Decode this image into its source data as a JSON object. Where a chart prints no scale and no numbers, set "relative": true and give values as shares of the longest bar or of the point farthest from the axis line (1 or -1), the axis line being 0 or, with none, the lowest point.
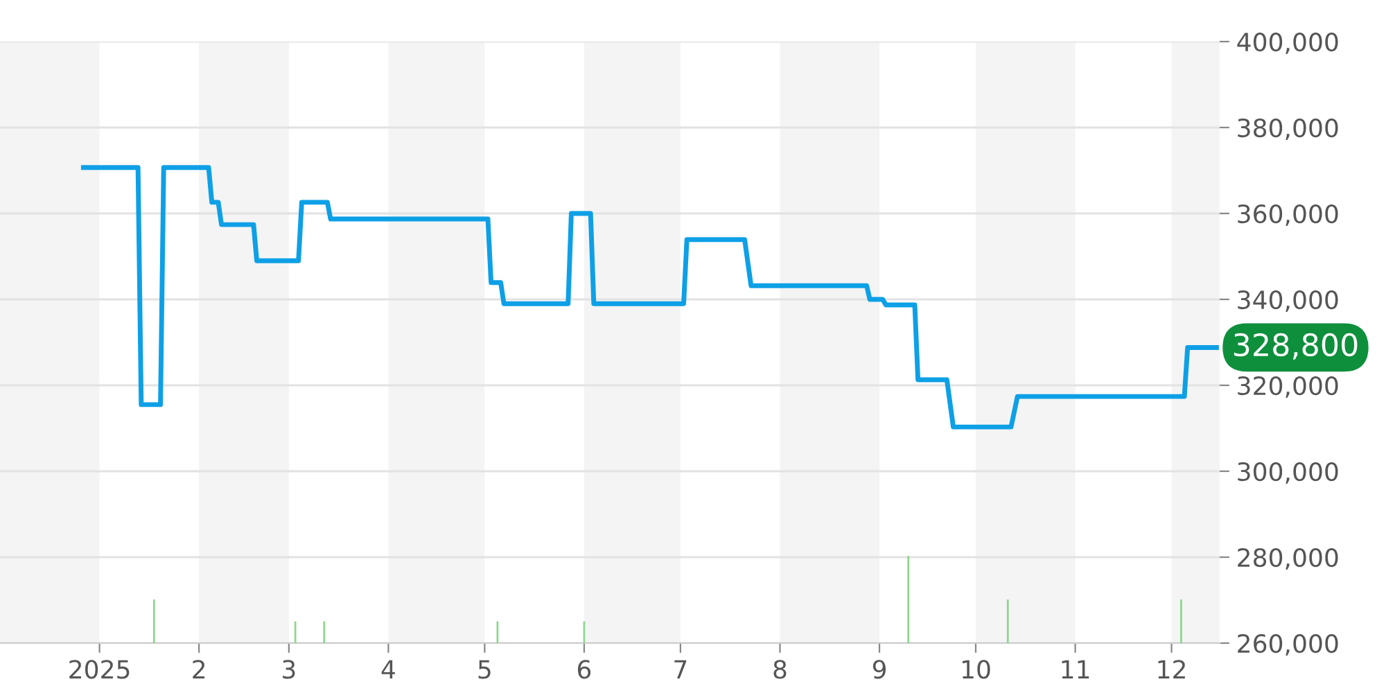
{
  "chart_data": [
    {
      "type": "line",
      "color": "#0ea0e6",
      "x": [
        "2024-12-27",
        "2025-01-13",
        "2025-01-14",
        "2025-01-20",
        "2025-01-21",
        "2025-02-04",
        "2025-02-05",
        "2025-02-07",
        "2025-02-08",
        "2025-02-18",
        "2025-02-19",
        "2025-03-04",
        "2025-03-05",
        "2025-03-13",
        "2025-03-14",
        "2025-05-02",
        "2025-05-03",
        "2025-05-06",
        "2025-05-07",
        "2025-05-27",
        "2025-05-28",
        "2025-06-03",
        "2025-06-04",
        "2025-07-02",
        "2025-07-03",
        "2025-07-21",
        "2025-07-23",
        "2025-08-28",
        "2025-08-29",
        "2025-09-02",
        "2025-09-03",
        "2025-09-12",
        "2025-09-13",
        "2025-09-22",
        "2025-09-24",
        "2025-10-12",
        "2025-10-14",
        "2025-12-05",
        "2025-12-06",
        "2025-12-15"
      ],
      "values": [
        370700,
        370700,
        315500,
        315500,
        370700,
        370700,
        362600,
        362600,
        357400,
        357400,
        349000,
        349000,
        362600,
        362600,
        358700,
        358700,
        343900,
        343900,
        339000,
        339000,
        360000,
        360000,
        339000,
        339000,
        353900,
        353900,
        343200,
        343200,
        340000,
        340000,
        338700,
        338700,
        321300,
        321300,
        310300,
        310300,
        317400,
        317400,
        328800,
        328800
      ],
      "xlim": [
        "2024-12-01",
        "2025-12-16"
      ],
      "xticks": [
        {
          "value": "2025-01-01",
          "label": "2025"
        },
        {
          "value": "2025-02-01",
          "label": "2"
        },
        {
          "value": "2025-03-01",
          "label": "3"
        },
        {
          "value": "2025-04-01",
          "label": "4"
        },
        {
          "value": "2025-05-01",
          "label": "5"
        },
        {
          "value": "2025-06-01",
          "label": "6"
        },
        {
          "value": "2025-07-01",
          "label": "7"
        },
        {
          "value": "2025-08-01",
          "label": "8"
        },
        {
          "value": "2025-09-01",
          "label": "9"
        },
        {
          "value": "2025-10-01",
          "label": "10"
        },
        {
          "value": "2025-11-01",
          "label": "11"
        },
        {
          "value": "2025-12-01",
          "label": "12"
        }
      ],
      "ylim": [
        260000,
        400000
      ],
      "yticks": [
        {
          "value": 260000,
          "label": "260,000"
        },
        {
          "value": 280000,
          "label": "280,000"
        },
        {
          "value": 300000,
          "label": "300,000"
        },
        {
          "value": 320000,
          "label": "320,000"
        },
        {
          "value": 340000,
          "label": "340,000"
        },
        {
          "value": 360000,
          "label": "360,000"
        },
        {
          "value": 380000,
          "label": "380,000"
        },
        {
          "value": 400000,
          "label": "400,000"
        }
      ],
      "grid": "y",
      "marker": "none",
      "line_style": "solid",
      "bands": [
        {
          "axis": "x",
          "from": "2024-12-01",
          "to": "2025-01-01",
          "color": "#f4f4f4"
        },
        {
          "axis": "x",
          "from": "2025-02-01",
          "to": "2025-03-01",
          "color": "#f4f4f4"
        },
        {
          "axis": "x",
          "from": "2025-04-01",
          "to": "2025-05-01",
          "color": "#f4f4f4"
        },
        {
          "axis": "x",
          "from": "2025-06-01",
          "to": "2025-07-01",
          "color": "#f4f4f4"
        },
        {
          "axis": "x",
          "from": "2025-08-01",
          "to": "2025-09-01",
          "color": "#f4f4f4"
        },
        {
          "axis": "x",
          "from": "2025-10-01",
          "to": "2025-11-01",
          "color": "#f4f4f4"
        },
        {
          "axis": "x",
          "from": "2025-12-01",
          "to": "2025-12-16",
          "color": "#f4f4f4"
        }
      ],
      "annotations": [
        {
          "text": "328,800",
          "x": "2025-12-15",
          "y": 328800
        }
      ]
    },
    {
      "type": "bar",
      "relative": true,
      "color": "#8fd68f",
      "x": [
        "2025-01-18",
        "2025-03-03",
        "2025-03-12",
        "2025-05-05",
        "2025-06-01",
        "2025-09-10",
        "2025-10-11",
        "2025-12-04"
      ],
      "values": [
        0.5,
        0.25,
        0.25,
        0.25,
        0.25,
        1,
        0.5,
        0.5
      ],
      "xlim": [
        "2024-12-01",
        "2025-12-16"
      ],
      "tick_labels": false
    }
  ]
}
